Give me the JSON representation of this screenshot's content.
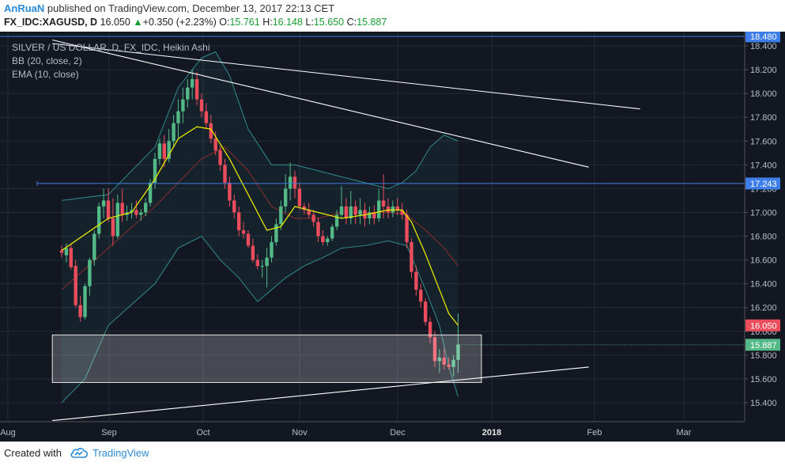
{
  "header": {
    "author": "AnRuaN",
    "published_text": "published on TradingView.com, December 13, 2017 22:13 CET",
    "symbol": "FX_IDC:XAGUSD, D",
    "last": "16.050",
    "change": "+0.350 (+2.23%)",
    "o_label": "O:",
    "o_value": "15.761",
    "h_label": "H:",
    "h_value": "16.148",
    "l_label": "L:",
    "l_value": "15.650",
    "c_label": "C:",
    "c_value": "15.887"
  },
  "legend": {
    "title": "SILVER / US DOLLAR, D, FX_IDC, Heikin Ashi",
    "bb": "BB (20, close, 2)",
    "ema": "EMA (10, close)"
  },
  "footer": {
    "created": "Created with",
    "brand": "TradingView"
  },
  "chart_data": {
    "type": "candlestick",
    "style": "Heikin Ashi",
    "y_ticks": [
      "18.400",
      "18.200",
      "18.000",
      "17.800",
      "17.600",
      "17.400",
      "17.200",
      "17.000",
      "16.800",
      "16.600",
      "16.400",
      "16.200",
      "16.000",
      "15.800",
      "15.600",
      "15.400"
    ],
    "x_labels": [
      "Aug",
      "Sep",
      "Oct",
      "Nov",
      "Dec",
      "2018",
      "Feb",
      "Mar"
    ],
    "ylim": [
      15.2,
      18.5
    ],
    "price_labels": {
      "resistance": "17.243",
      "last": "16.050",
      "close": "15.887",
      "top": "18.480"
    },
    "colors": {
      "up": "#53b987",
      "down": "#eb4d5c",
      "ema": "#e6e600",
      "bb_basis": "#8b2e2e",
      "bb_band": "#2f8c8c",
      "hline": "#3d7ee8"
    },
    "candles": [
      {
        "d": -10,
        "o": 16.68,
        "h": 16.72,
        "l": 16.62,
        "c": 16.66
      },
      {
        "d": -9,
        "o": 16.64,
        "h": 16.74,
        "l": 16.58,
        "c": 16.7
      },
      {
        "d": -8,
        "o": 16.7,
        "h": 16.73,
        "l": 16.52,
        "c": 16.54
      },
      {
        "d": -7,
        "o": 16.55,
        "h": 16.6,
        "l": 16.2,
        "c": 16.22
      },
      {
        "d": -6,
        "o": 16.22,
        "h": 16.3,
        "l": 16.08,
        "c": 16.12
      },
      {
        "d": -5,
        "o": 16.12,
        "h": 16.4,
        "l": 16.1,
        "c": 16.38
      },
      {
        "d": -4,
        "o": 16.38,
        "h": 16.62,
        "l": 16.3,
        "c": 16.6
      },
      {
        "d": -3,
        "o": 16.6,
        "h": 16.85,
        "l": 16.55,
        "c": 16.82
      },
      {
        "d": -2,
        "o": 16.82,
        "h": 17.08,
        "l": 16.78,
        "c": 17.05
      },
      {
        "d": -1,
        "o": 17.05,
        "h": 17.2,
        "l": 16.95,
        "c": 17.1
      },
      {
        "d": 0,
        "o": 17.1,
        "h": 17.2,
        "l": 16.92,
        "c": 16.95
      },
      {
        "d": 1,
        "o": 16.95,
        "h": 17.12,
        "l": 16.72,
        "c": 16.8
      },
      {
        "d": 2,
        "o": 16.8,
        "h": 17.15,
        "l": 16.78,
        "c": 17.08
      },
      {
        "d": 3,
        "o": 17.08,
        "h": 17.2,
        "l": 16.92,
        "c": 16.98
      },
      {
        "d": 4,
        "o": 16.98,
        "h": 17.06,
        "l": 16.93,
        "c": 17.0
      },
      {
        "d": 5,
        "o": 17.0,
        "h": 17.08,
        "l": 16.95,
        "c": 17.02
      },
      {
        "d": 6,
        "o": 17.02,
        "h": 17.1,
        "l": 16.95,
        "c": 16.98
      },
      {
        "d": 7,
        "o": 16.98,
        "h": 17.03,
        "l": 16.93,
        "c": 17.0
      },
      {
        "d": 8,
        "o": 17.0,
        "h": 17.12,
        "l": 16.97,
        "c": 17.08
      },
      {
        "d": 9,
        "o": 17.08,
        "h": 17.28,
        "l": 17.05,
        "c": 17.25
      },
      {
        "d": 10,
        "o": 17.25,
        "h": 17.5,
        "l": 17.2,
        "c": 17.45
      },
      {
        "d": 11,
        "o": 17.45,
        "h": 17.62,
        "l": 17.4,
        "c": 17.58
      },
      {
        "d": 12,
        "o": 17.58,
        "h": 17.65,
        "l": 17.38,
        "c": 17.45
      },
      {
        "d": 13,
        "o": 17.45,
        "h": 17.7,
        "l": 17.42,
        "c": 17.6
      },
      {
        "d": 14,
        "o": 17.6,
        "h": 17.82,
        "l": 17.55,
        "c": 17.75
      },
      {
        "d": 15,
        "o": 17.75,
        "h": 17.95,
        "l": 17.62,
        "c": 17.85
      },
      {
        "d": 16,
        "o": 17.85,
        "h": 18.05,
        "l": 17.75,
        "c": 17.95
      },
      {
        "d": 17,
        "o": 17.95,
        "h": 18.12,
        "l": 17.88,
        "c": 18.05
      },
      {
        "d": 18,
        "o": 18.05,
        "h": 18.2,
        "l": 17.95,
        "c": 18.12
      },
      {
        "d": 19,
        "o": 18.12,
        "h": 18.18,
        "l": 17.9,
        "c": 17.95
      },
      {
        "d": 20,
        "o": 17.95,
        "h": 18.0,
        "l": 17.8,
        "c": 17.85
      },
      {
        "d": 21,
        "o": 17.85,
        "h": 17.92,
        "l": 17.7,
        "c": 17.75
      },
      {
        "d": 22,
        "o": 17.75,
        "h": 17.82,
        "l": 17.58,
        "c": 17.62
      },
      {
        "d": 23,
        "o": 17.62,
        "h": 17.68,
        "l": 17.48,
        "c": 17.52
      },
      {
        "d": 24,
        "o": 17.52,
        "h": 17.56,
        "l": 17.35,
        "c": 17.4
      },
      {
        "d": 25,
        "o": 17.4,
        "h": 17.45,
        "l": 17.2,
        "c": 17.25
      },
      {
        "d": 26,
        "o": 17.25,
        "h": 17.3,
        "l": 17.05,
        "c": 17.1
      },
      {
        "d": 27,
        "o": 17.1,
        "h": 17.15,
        "l": 16.95,
        "c": 17.0
      },
      {
        "d": 28,
        "o": 17.0,
        "h": 17.05,
        "l": 16.8,
        "c": 16.85
      },
      {
        "d": 29,
        "o": 16.85,
        "h": 16.92,
        "l": 16.78,
        "c": 16.82
      },
      {
        "d": 30,
        "o": 16.82,
        "h": 16.85,
        "l": 16.7,
        "c": 16.72
      },
      {
        "d": 31,
        "o": 16.72,
        "h": 16.78,
        "l": 16.58,
        "c": 16.6
      },
      {
        "d": 32,
        "o": 16.6,
        "h": 16.65,
        "l": 16.52,
        "c": 16.55
      },
      {
        "d": 33,
        "o": 16.55,
        "h": 16.6,
        "l": 16.45,
        "c": 16.55
      },
      {
        "d": 34,
        "o": 16.55,
        "h": 16.7,
        "l": 16.37,
        "c": 16.62
      },
      {
        "d": 35,
        "o": 16.62,
        "h": 16.8,
        "l": 16.58,
        "c": 16.75
      },
      {
        "d": 36,
        "o": 16.75,
        "h": 16.95,
        "l": 16.72,
        "c": 16.9
      },
      {
        "d": 37,
        "o": 16.9,
        "h": 17.1,
        "l": 16.85,
        "c": 17.05
      },
      {
        "d": 38,
        "o": 17.05,
        "h": 17.32,
        "l": 17.0,
        "c": 17.2
      },
      {
        "d": 39,
        "o": 17.2,
        "h": 17.42,
        "l": 17.1,
        "c": 17.3
      },
      {
        "d": 40,
        "o": 17.3,
        "h": 17.35,
        "l": 17.12,
        "c": 17.2
      },
      {
        "d": 41,
        "o": 17.2,
        "h": 17.25,
        "l": 17.02,
        "c": 17.05
      },
      {
        "d": 42,
        "o": 17.05,
        "h": 17.08,
        "l": 16.98,
        "c": 17.02
      },
      {
        "d": 43,
        "o": 17.02,
        "h": 17.08,
        "l": 16.95,
        "c": 16.98
      },
      {
        "d": 44,
        "o": 16.98,
        "h": 17.02,
        "l": 16.88,
        "c": 16.92
      },
      {
        "d": 45,
        "o": 16.92,
        "h": 16.96,
        "l": 16.75,
        "c": 16.8
      },
      {
        "d": 46,
        "o": 16.8,
        "h": 16.85,
        "l": 16.72,
        "c": 16.75
      },
      {
        "d": 47,
        "o": 16.75,
        "h": 16.8,
        "l": 16.72,
        "c": 16.78
      },
      {
        "d": 48,
        "o": 16.78,
        "h": 16.9,
        "l": 16.76,
        "c": 16.88
      },
      {
        "d": 49,
        "o": 16.88,
        "h": 17.02,
        "l": 16.85,
        "c": 16.98
      },
      {
        "d": 50,
        "o": 16.98,
        "h": 17.22,
        "l": 16.95,
        "c": 17.05
      },
      {
        "d": 51,
        "o": 17.05,
        "h": 17.12,
        "l": 16.9,
        "c": 16.95
      },
      {
        "d": 52,
        "o": 16.95,
        "h": 17.18,
        "l": 16.9,
        "c": 17.05
      },
      {
        "d": 53,
        "o": 17.05,
        "h": 17.1,
        "l": 16.9,
        "c": 16.98
      },
      {
        "d": 54,
        "o": 16.98,
        "h": 17.12,
        "l": 16.9,
        "c": 17.02
      },
      {
        "d": 55,
        "o": 17.02,
        "h": 17.08,
        "l": 16.88,
        "c": 16.95
      },
      {
        "d": 56,
        "o": 16.95,
        "h": 17.05,
        "l": 16.9,
        "c": 17.0
      },
      {
        "d": 57,
        "o": 17.0,
        "h": 17.06,
        "l": 16.9,
        "c": 16.95
      },
      {
        "d": 58,
        "o": 16.95,
        "h": 17.2,
        "l": 16.92,
        "c": 17.1
      },
      {
        "d": 59,
        "o": 17.1,
        "h": 17.32,
        "l": 16.95,
        "c": 17.05
      },
      {
        "d": 60,
        "o": 17.05,
        "h": 17.12,
        "l": 16.95,
        "c": 17.0
      },
      {
        "d": 61,
        "o": 17.0,
        "h": 17.1,
        "l": 16.96,
        "c": 17.05
      },
      {
        "d": 62,
        "o": 17.05,
        "h": 17.12,
        "l": 16.98,
        "c": 17.02
      },
      {
        "d": 63,
        "o": 17.02,
        "h": 17.08,
        "l": 16.94,
        "c": 16.98
      },
      {
        "d": 64,
        "o": 16.98,
        "h": 17.02,
        "l": 16.7,
        "c": 16.75
      },
      {
        "d": 65,
        "o": 16.75,
        "h": 16.78,
        "l": 16.45,
        "c": 16.5
      },
      {
        "d": 66,
        "o": 16.5,
        "h": 16.55,
        "l": 16.3,
        "c": 16.35
      },
      {
        "d": 67,
        "o": 16.35,
        "h": 16.4,
        "l": 16.2,
        "c": 16.25
      },
      {
        "d": 68,
        "o": 16.25,
        "h": 16.28,
        "l": 16.05,
        "c": 16.08
      },
      {
        "d": 69,
        "o": 16.08,
        "h": 16.12,
        "l": 15.9,
        "c": 15.95
      },
      {
        "d": 70,
        "o": 15.95,
        "h": 16.0,
        "l": 15.7,
        "c": 15.75
      },
      {
        "d": 71,
        "o": 15.75,
        "h": 15.85,
        "l": 15.65,
        "c": 15.78
      },
      {
        "d": 72,
        "o": 15.78,
        "h": 15.86,
        "l": 15.68,
        "c": 15.72
      },
      {
        "d": 73,
        "o": 15.72,
        "h": 15.78,
        "l": 15.68,
        "c": 15.7
      },
      {
        "d": 74,
        "o": 15.7,
        "h": 15.8,
        "l": 15.62,
        "c": 15.76
      },
      {
        "d": 75,
        "o": 15.76,
        "h": 16.15,
        "l": 15.65,
        "c": 15.89
      }
    ],
    "ema": [
      [
        -10,
        16.68
      ],
      [
        0,
        16.95
      ],
      [
        5,
        17.0
      ],
      [
        10,
        17.28
      ],
      [
        15,
        17.62
      ],
      [
        19,
        17.72
      ],
      [
        22,
        17.7
      ],
      [
        26,
        17.45
      ],
      [
        30,
        17.15
      ],
      [
        34,
        16.85
      ],
      [
        37,
        16.88
      ],
      [
        40,
        17.05
      ],
      [
        45,
        17.0
      ],
      [
        50,
        16.95
      ],
      [
        55,
        16.98
      ],
      [
        60,
        17.02
      ],
      [
        63,
        17.02
      ],
      [
        65,
        16.92
      ],
      [
        68,
        16.65
      ],
      [
        71,
        16.35
      ],
      [
        73,
        16.15
      ],
      [
        75,
        16.05
      ]
    ],
    "bb_basis": [
      [
        -10,
        16.35
      ],
      [
        0,
        16.7
      ],
      [
        10,
        17.05
      ],
      [
        20,
        17.45
      ],
      [
        25,
        17.55
      ],
      [
        30,
        17.35
      ],
      [
        35,
        17.05
      ],
      [
        40,
        16.95
      ],
      [
        45,
        16.95
      ],
      [
        50,
        17.0
      ],
      [
        55,
        17.0
      ],
      [
        60,
        17.0
      ],
      [
        64,
        16.98
      ],
      [
        68,
        16.85
      ],
      [
        72,
        16.7
      ],
      [
        75,
        16.55
      ]
    ],
    "bb_upper": [
      [
        -10,
        17.1
      ],
      [
        0,
        17.15
      ],
      [
        10,
        17.55
      ],
      [
        15,
        18.05
      ],
      [
        20,
        18.3
      ],
      [
        23,
        18.35
      ],
      [
        26,
        18.15
      ],
      [
        30,
        17.7
      ],
      [
        35,
        17.4
      ],
      [
        40,
        17.4
      ],
      [
        45,
        17.35
      ],
      [
        50,
        17.3
      ],
      [
        55,
        17.25
      ],
      [
        60,
        17.2
      ],
      [
        63,
        17.25
      ],
      [
        66,
        17.35
      ],
      [
        69,
        17.55
      ],
      [
        72,
        17.65
      ],
      [
        75,
        17.6
      ]
    ],
    "bb_lower": [
      [
        -10,
        15.4
      ],
      [
        -5,
        15.6
      ],
      [
        0,
        16.05
      ],
      [
        10,
        16.4
      ],
      [
        15,
        16.7
      ],
      [
        20,
        16.8
      ],
      [
        24,
        16.6
      ],
      [
        28,
        16.45
      ],
      [
        32,
        16.25
      ],
      [
        35,
        16.35
      ],
      [
        38,
        16.45
      ],
      [
        42,
        16.55
      ],
      [
        46,
        16.62
      ],
      [
        50,
        16.7
      ],
      [
        55,
        16.72
      ],
      [
        60,
        16.76
      ],
      [
        64,
        16.72
      ],
      [
        68,
        16.35
      ],
      [
        71,
        16.05
      ],
      [
        73,
        15.7
      ],
      [
        75,
        15.45
      ]
    ],
    "resistance": 17.243,
    "trendlines": [
      {
        "from": [
          -12,
          18.42
        ],
        "to": [
          114,
          17.87
        ]
      },
      {
        "from": [
          -12,
          18.45
        ],
        "to": [
          103,
          17.38
        ]
      },
      {
        "from": [
          -12,
          15.25
        ],
        "to": [
          103,
          15.7
        ]
      }
    ],
    "zone": {
      "d0": -12,
      "d1": 80,
      "y0": 15.57,
      "y1": 15.97
    }
  }
}
